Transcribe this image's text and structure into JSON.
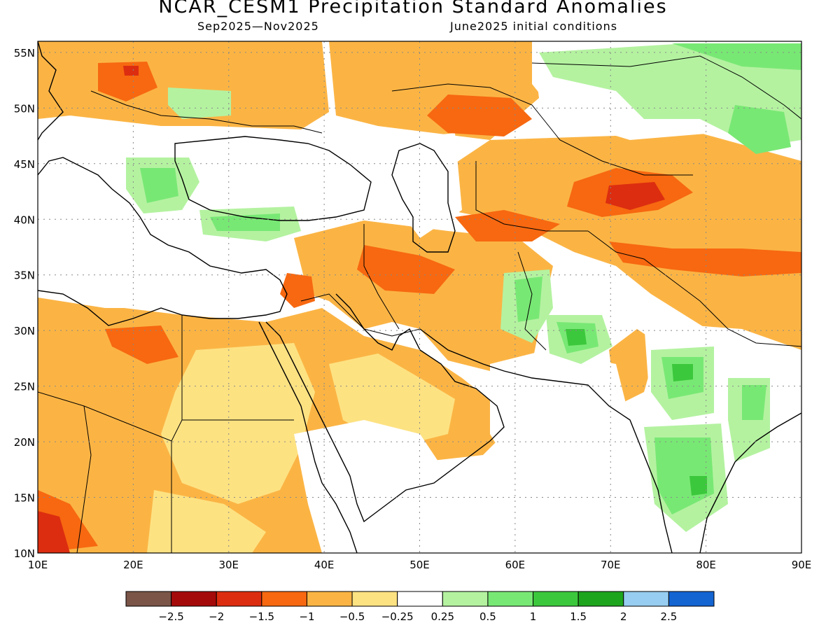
{
  "title": "NCAR_CESM1 Precipitation Standard Anomalies",
  "subtitle_left": "Sep2025—Nov2025",
  "subtitle_right": "June2025 initial conditions",
  "map": {
    "lat_labels": [
      "55N",
      "50N",
      "45N",
      "40N",
      "35N",
      "30N",
      "25N",
      "20N",
      "15N",
      "10N"
    ],
    "lon_labels": [
      "10E",
      "20E",
      "30E",
      "40E",
      "50E",
      "60E",
      "70E",
      "80E",
      "90E"
    ],
    "lat_values": [
      55,
      50,
      45,
      40,
      35,
      30,
      25,
      20,
      15,
      10
    ],
    "lon_values": [
      10,
      20,
      30,
      40,
      50,
      60,
      70,
      80,
      90
    ],
    "lat_range": [
      10,
      56
    ],
    "lon_range": [
      10,
      90
    ],
    "grid": "dotted"
  },
  "legend": {
    "labels": [
      "−2.5",
      "−2",
      "−1.5",
      "−1",
      "−0.5",
      "−0.25",
      "0.25",
      "0.5",
      "1",
      "1.5",
      "2",
      "2.5"
    ],
    "colors": [
      "#7a5548",
      "#a50a0a",
      "#dc2d10",
      "#f76810",
      "#fbb444",
      "#fde282",
      "#ffffff",
      "#b4f2a0",
      "#78e874",
      "#3cc83c",
      "#1ea51e",
      "#96cdf0",
      "#1464d2"
    ]
  }
}
